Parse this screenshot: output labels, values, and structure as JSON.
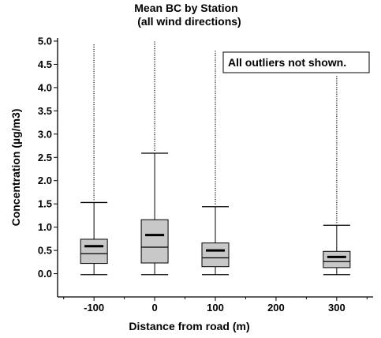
{
  "chart_data": {
    "type": "box",
    "title": "Mean BC by Station",
    "subtitle": "(all wind directions)",
    "xlabel": "Distance from road (m)",
    "ylabel": "Concentration (µg/m3)",
    "note": "All outliers not shown.",
    "ylim": [
      -0.5,
      5.0
    ],
    "xlim": [
      -160,
      360
    ],
    "yticks": [
      0.0,
      0.5,
      1.0,
      1.5,
      2.0,
      2.5,
      3.0,
      3.5,
      4.0,
      4.5,
      5.0
    ],
    "ytick_labels": [
      "0.0",
      "0.5",
      "1.0",
      "1.5",
      "2.0",
      "2.5",
      "3.0",
      "3.5",
      "4.0",
      "4.5",
      "5.0"
    ],
    "xticks": [
      -100,
      0,
      100,
      200,
      300
    ],
    "xtick_labels": [
      "-100",
      "0",
      "100",
      "200",
      "300"
    ],
    "box_color": "#c8c8c8",
    "boxes": [
      {
        "x": -100,
        "min": -0.02,
        "q1": 0.22,
        "median": 0.43,
        "mean": 0.59,
        "q3": 0.74,
        "p95": 1.53,
        "outlier_top": 4.95
      },
      {
        "x": 0,
        "min": -0.02,
        "q1": 0.23,
        "median": 0.57,
        "mean": 0.83,
        "q3": 1.16,
        "p95": 2.59,
        "outlier_top": 5.0
      },
      {
        "x": 100,
        "min": -0.02,
        "q1": 0.15,
        "median": 0.34,
        "mean": 0.5,
        "q3": 0.66,
        "p95": 1.44,
        "outlier_top": 4.8
      },
      {
        "x": 300,
        "min": -0.02,
        "q1": 0.13,
        "median": 0.26,
        "mean": 0.36,
        "q3": 0.48,
        "p95": 1.04,
        "outlier_top": 4.25
      }
    ]
  }
}
